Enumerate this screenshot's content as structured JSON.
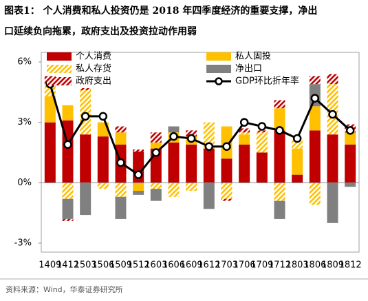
{
  "chart_data": {
    "type": "bar",
    "title_line1": "图表1： 个人消费和私人投资仍是 2018 年四季度经济的重要支撑，净出",
    "title_line2": "口延续负向拖累，政府支出及投资拉动作用弱",
    "source": "资料来源：Wind，华泰证券研究所",
    "categories": [
      "1409",
      "1412",
      "1503",
      "1506",
      "1509",
      "1512",
      "1603",
      "1606",
      "1609",
      "1612",
      "1703",
      "1706",
      "1709",
      "1712",
      "1803",
      "1806",
      "1809",
      "1812"
    ],
    "stacked": true,
    "series": [
      {
        "name": "个人消费",
        "color": "#c00000",
        "hatched": false,
        "values": [
          3.0,
          3.1,
          2.4,
          2.3,
          1.9,
          1.55,
          1.7,
          2.0,
          1.9,
          1.7,
          1.2,
          1.9,
          1.5,
          2.6,
          0.4,
          2.6,
          2.4,
          1.9
        ]
      },
      {
        "name": "私人固投",
        "color": "#ffc000",
        "hatched": false,
        "values": [
          1.3,
          0.75,
          0,
          0.7,
          0.6,
          -0.4,
          0.3,
          0.5,
          0.4,
          0,
          1.6,
          0.5,
          0,
          1.1,
          1.3,
          1.2,
          0,
          0.6
        ]
      },
      {
        "name": "私人存货",
        "color": "#ffc000",
        "hatched": true,
        "values": [
          0.5,
          -0.8,
          2.2,
          -0.3,
          -0.7,
          0,
          -0.3,
          -0.7,
          -0.4,
          1.3,
          -0.8,
          0.1,
          1.0,
          -0.9,
          0.5,
          -1.1,
          2.5,
          0
        ]
      },
      {
        "name": "净出口",
        "color": "#808080",
        "hatched": false,
        "values": [
          0,
          -1.0,
          -1.6,
          0,
          -1.1,
          -0.2,
          -0.6,
          0.3,
          0,
          -1.3,
          0,
          0,
          0,
          -0.9,
          0,
          1.1,
          -2.0,
          -0.2
        ]
      },
      {
        "name": "政府支出",
        "color": "#c00000",
        "hatched": true,
        "values": [
          0.5,
          -0.1,
          0.1,
          0,
          0.3,
          0.1,
          0.5,
          0,
          0.3,
          0,
          -0.1,
          0.2,
          0.1,
          0.4,
          0,
          0.4,
          0.5,
          0.4
        ]
      }
    ],
    "line": {
      "name": "GDP环比折年率",
      "color": "#000000",
      "values": [
        4.9,
        1.9,
        3.3,
        3.3,
        1.0,
        0.4,
        1.5,
        2.3,
        2.2,
        1.8,
        1.8,
        3.0,
        2.8,
        2.6,
        2.2,
        4.2,
        3.4,
        2.6
      ]
    },
    "ylim": [
      -3,
      6
    ],
    "yticks": [
      {
        "value": -3,
        "label": "-3%"
      },
      {
        "value": 0,
        "label": "0%"
      },
      {
        "value": 3,
        "label": "3%"
      },
      {
        "value": 6,
        "label": "6%"
      }
    ]
  }
}
